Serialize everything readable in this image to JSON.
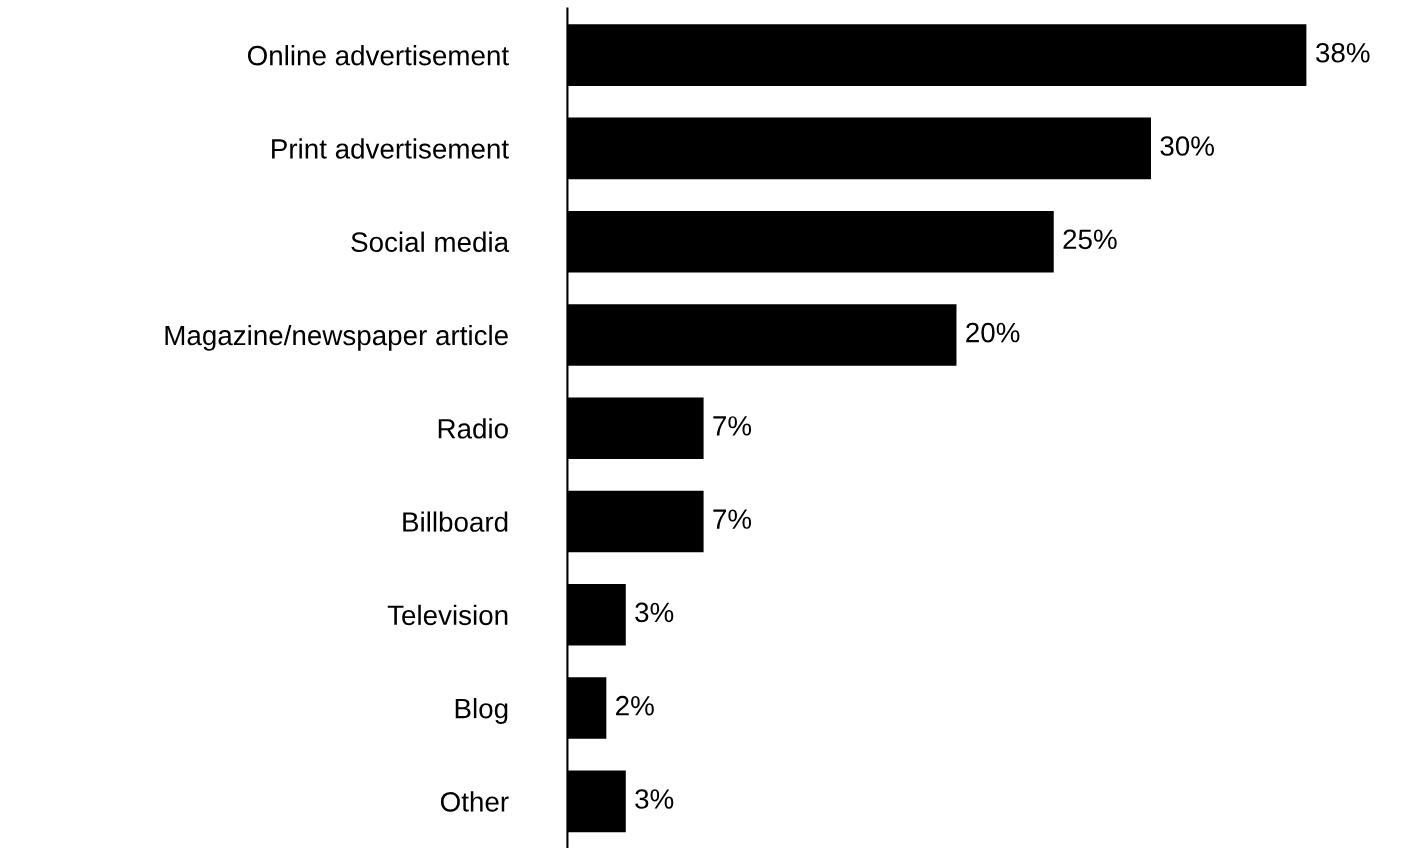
{
  "chart_data": {
    "type": "bar",
    "orientation": "horizontal",
    "categories": [
      "Online advertisement",
      "Print advertisement",
      "Social media",
      "Magazine/newspaper article",
      "Radio",
      "Billboard",
      "Television",
      "Blog",
      "Other"
    ],
    "values": [
      38,
      30,
      25,
      20,
      7,
      7,
      3,
      2,
      3
    ],
    "value_labels": [
      "38%",
      "30%",
      "25%",
      "20%",
      "7%",
      "7%",
      "3%",
      "2%",
      "3%"
    ],
    "color": "#000000",
    "tick_labels": "y",
    "grid": false,
    "legend": false
  }
}
